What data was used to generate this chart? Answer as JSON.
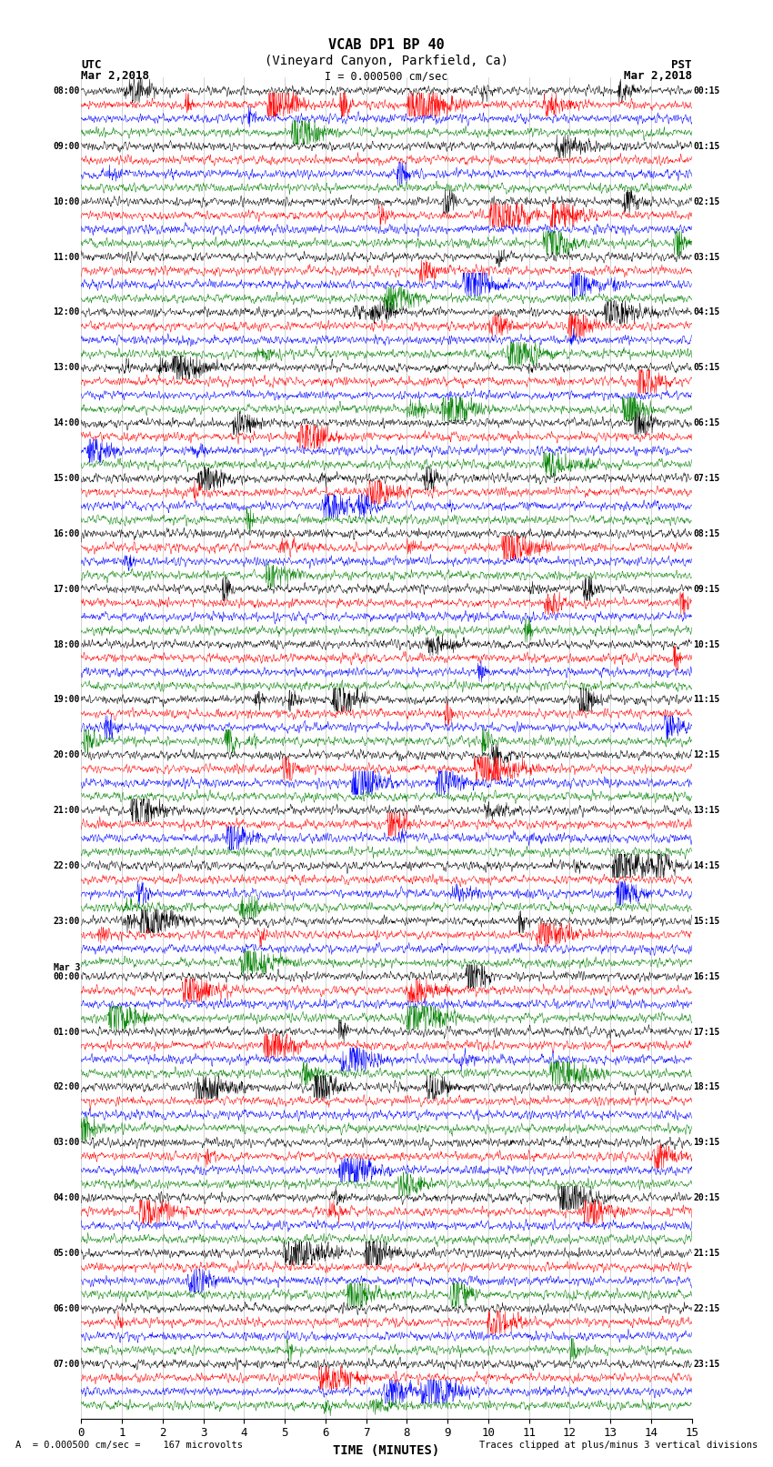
{
  "title_line1": "VCAB DP1 BP 40",
  "title_line2": "(Vineyard Canyon, Parkfield, Ca)",
  "scale_label": "I = 0.000500 cm/sec",
  "utc_label": "UTC",
  "pst_label": "PST",
  "date_left": "Mar 2,2018",
  "date_right": "Mar 2,2018",
  "xlabel": "TIME (MINUTES)",
  "footer_left": "= 0.000500 cm/sec =    167 microvolts",
  "footer_right": "Traces clipped at plus/minus 3 vertical divisions",
  "footer_scale_letter": "A",
  "xlim": [
    0,
    15
  ],
  "xticks": [
    0,
    1,
    2,
    3,
    4,
    5,
    6,
    7,
    8,
    9,
    10,
    11,
    12,
    13,
    14,
    15
  ],
  "num_rows": 96,
  "row_colors": [
    "black",
    "red",
    "blue",
    "green"
  ],
  "background_color": "white",
  "left_times_utc": [
    "08:00",
    "",
    "",
    "",
    "09:00",
    "",
    "",
    "",
    "10:00",
    "",
    "",
    "",
    "11:00",
    "",
    "",
    "",
    "12:00",
    "",
    "",
    "",
    "13:00",
    "",
    "",
    "",
    "14:00",
    "",
    "",
    "",
    "15:00",
    "",
    "",
    "",
    "16:00",
    "",
    "",
    "",
    "17:00",
    "",
    "",
    "",
    "18:00",
    "",
    "",
    "",
    "19:00",
    "",
    "",
    "",
    "20:00",
    "",
    "",
    "",
    "21:00",
    "",
    "",
    "",
    "22:00",
    "",
    "",
    "",
    "23:00",
    "",
    "",
    "",
    "Mar 3\n00:00",
    "",
    "",
    "",
    "01:00",
    "",
    "",
    "",
    "02:00",
    "",
    "",
    "",
    "03:00",
    "",
    "",
    "",
    "04:00",
    "",
    "",
    "",
    "05:00",
    "",
    "",
    "",
    "06:00",
    "",
    "",
    "",
    "07:00",
    "",
    "",
    ""
  ],
  "right_times_pst": [
    "00:15",
    "",
    "",
    "",
    "01:15",
    "",
    "",
    "",
    "02:15",
    "",
    "",
    "",
    "03:15",
    "",
    "",
    "",
    "04:15",
    "",
    "",
    "",
    "05:15",
    "",
    "",
    "",
    "06:15",
    "",
    "",
    "",
    "07:15",
    "",
    "",
    "",
    "08:15",
    "",
    "",
    "",
    "09:15",
    "",
    "",
    "",
    "10:15",
    "",
    "",
    "",
    "11:15",
    "",
    "",
    "",
    "12:15",
    "",
    "",
    "",
    "13:15",
    "",
    "",
    "",
    "14:15",
    "",
    "",
    "",
    "15:15",
    "",
    "",
    "",
    "16:15",
    "",
    "",
    "",
    "17:15",
    "",
    "",
    "",
    "18:15",
    "",
    "",
    "",
    "19:15",
    "",
    "",
    "",
    "20:15",
    "",
    "",
    "",
    "21:15",
    "",
    "",
    "",
    "22:15",
    "",
    "",
    "",
    "23:15",
    "",
    "",
    ""
  ]
}
